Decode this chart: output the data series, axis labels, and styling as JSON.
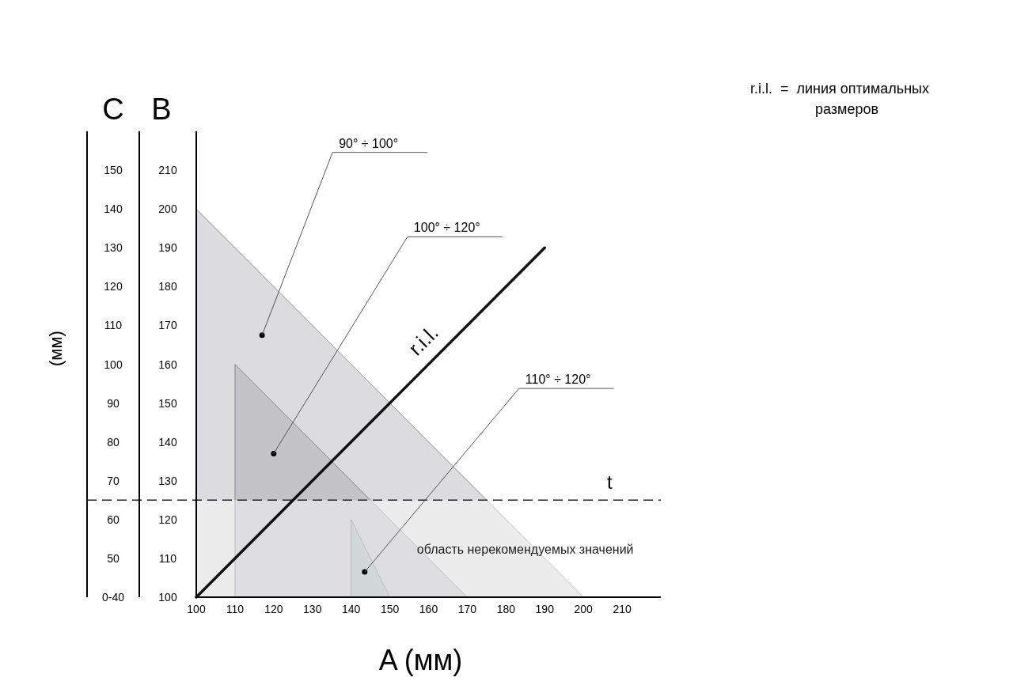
{
  "chart_data": {
    "type": "area",
    "xlabel": "A (мм)",
    "ylabel": "B",
    "y2label": "C",
    "xlim": [
      100,
      220
    ],
    "xticks": [
      100,
      110,
      120,
      130,
      140,
      150,
      160,
      170,
      180,
      190,
      200,
      210
    ],
    "ylim": [
      100,
      220
    ],
    "yticks": [
      100,
      110,
      120,
      130,
      140,
      150,
      160,
      170,
      180,
      190,
      200,
      210
    ],
    "y2lim": [
      40,
      160
    ],
    "y2ticks": [
      {
        "value": 40,
        "label": "0-40"
      },
      50,
      60,
      70,
      80,
      90,
      100,
      110,
      120,
      130,
      140,
      150
    ],
    "series": [
      {
        "color": "#dcdcde",
        "x": [
          100,
          200
        ],
        "values": [
          200,
          100
        ]
      },
      {
        "color": "#c4c4c8",
        "x": [
          110,
          170
        ],
        "values": [
          160,
          100
        ]
      },
      {
        "color": "#aeb6bc",
        "x": [
          140,
          150
        ],
        "values": [
          120,
          100
        ]
      },
      {
        "type": "line",
        "name": "r.i.l.",
        "color": "#111111",
        "x": [
          100,
          190
        ],
        "values": [
          100,
          190
        ]
      }
    ],
    "ref_lines": [
      {
        "axis": "y",
        "value": 125,
        "label": "t",
        "color": "#222222",
        "line_style": "dashed"
      }
    ],
    "bands": [
      {
        "axis": "y",
        "from": 100,
        "to": 125,
        "label": "область нерекомендуемых значений",
        "color": "#ffffff"
      }
    ],
    "annotations": [
      {
        "text": "90° ÷ 100°",
        "x": 117,
        "y": 167.5
      },
      {
        "text": "100° ÷ 120°",
        "x": 120,
        "y": 137
      },
      {
        "text": "110° ÷ 120°",
        "x": 143.5,
        "y": 106.5
      },
      "r.i.l.  =  линия оптимальных размеров",
      "(мм)"
    ]
  }
}
